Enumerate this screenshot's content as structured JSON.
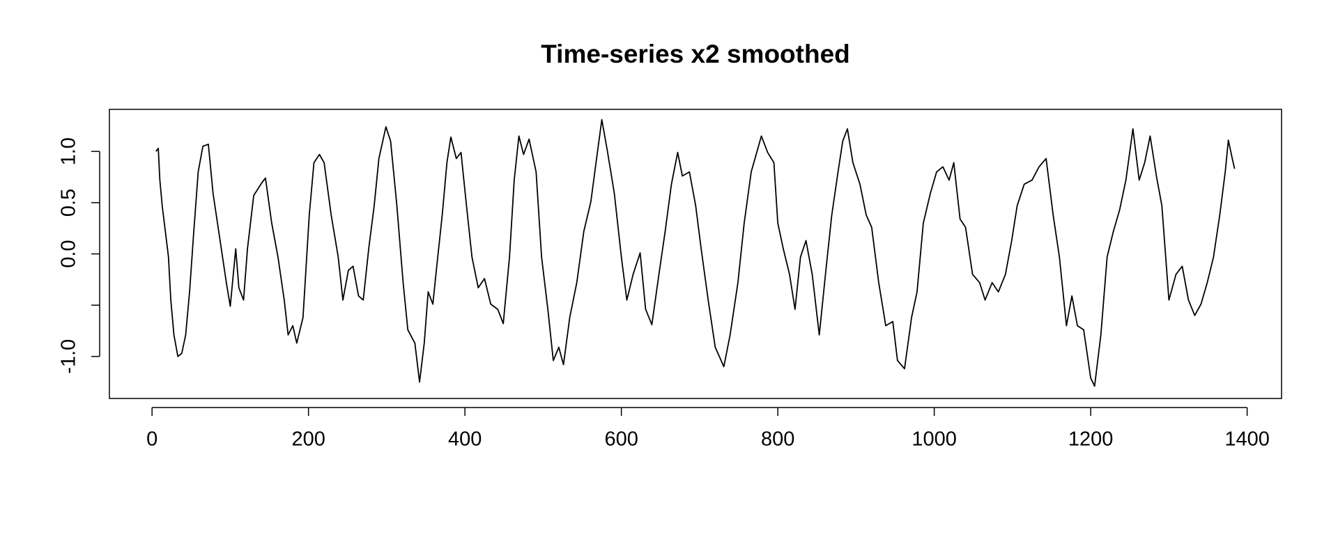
{
  "chart_data": {
    "type": "line",
    "title": "Time-series x2 smoothed",
    "x": [
      5,
      8,
      10,
      13,
      17,
      21,
      24,
      28,
      33,
      38,
      43,
      48,
      53,
      59,
      65,
      72,
      78,
      87,
      95,
      100,
      107,
      111,
      117,
      122,
      130,
      140,
      145,
      153,
      161,
      169,
      174,
      180,
      185,
      193,
      201,
      207,
      214,
      220,
      229,
      238,
      244,
      251,
      257,
      264,
      270,
      277,
      284,
      290,
      299,
      305,
      313,
      321,
      327,
      336,
      342,
      348,
      353,
      359,
      364,
      371,
      377,
      382,
      389,
      395,
      402,
      409,
      417,
      425,
      433,
      442,
      449,
      457,
      463,
      469,
      475,
      482,
      491,
      498,
      506,
      513,
      520,
      526,
      534,
      543,
      552,
      561,
      569,
      575,
      582,
      591,
      600,
      607,
      615,
      624,
      631,
      639,
      648,
      656,
      664,
      672,
      678,
      687,
      695,
      702,
      711,
      720,
      731,
      739,
      749,
      757,
      766,
      779,
      787,
      795,
      800,
      807,
      815,
      822,
      829,
      836,
      844,
      853,
      862,
      869,
      877,
      883,
      889,
      896,
      905,
      913,
      920,
      929,
      938,
      947,
      953,
      962,
      971,
      978,
      986,
      995,
      1003,
      1011,
      1019,
      1025,
      1033,
      1040,
      1049,
      1058,
      1065,
      1074,
      1082,
      1091,
      1099,
      1106,
      1115,
      1125,
      1134,
      1143,
      1152,
      1160,
      1169,
      1176,
      1183,
      1191,
      1200,
      1205,
      1213,
      1221,
      1229,
      1237,
      1245,
      1254,
      1262,
      1269,
      1276,
      1284,
      1291,
      1300,
      1309,
      1317,
      1325,
      1333,
      1341,
      1349,
      1357,
      1365,
      1372,
      1376,
      1381,
      1384
    ],
    "series": [
      {
        "color": "#000000",
        "values": [
          1.0,
          1.03,
          0.72,
          0.47,
          0.22,
          -0.03,
          -0.45,
          -0.79,
          -1.0,
          -0.97,
          -0.79,
          -0.37,
          0.18,
          0.8,
          1.05,
          1.07,
          0.59,
          0.13,
          -0.28,
          -0.51,
          0.05,
          -0.33,
          -0.45,
          0.05,
          0.57,
          0.69,
          0.74,
          0.3,
          -0.03,
          -0.45,
          -0.79,
          -0.7,
          -0.87,
          -0.62,
          0.38,
          0.89,
          0.97,
          0.89,
          0.38,
          -0.03,
          -0.45,
          -0.16,
          -0.12,
          -0.41,
          -0.45,
          0.05,
          0.47,
          0.93,
          1.24,
          1.1,
          0.47,
          -0.28,
          -0.74,
          -0.87,
          -1.25,
          -0.87,
          -0.37,
          -0.49,
          -0.12,
          0.38,
          0.89,
          1.14,
          0.93,
          0.99,
          0.47,
          -0.03,
          -0.33,
          -0.24,
          -0.49,
          -0.54,
          -0.68,
          -0.03,
          0.72,
          1.15,
          0.97,
          1.12,
          0.8,
          -0.03,
          -0.54,
          -1.04,
          -0.91,
          -1.08,
          -0.62,
          -0.28,
          0.22,
          0.51,
          0.97,
          1.31,
          1.01,
          0.59,
          -0.03,
          -0.45,
          -0.2,
          0.01,
          -0.54,
          -0.69,
          -0.2,
          0.22,
          0.68,
          0.99,
          0.76,
          0.8,
          0.47,
          0.05,
          -0.45,
          -0.91,
          -1.1,
          -0.79,
          -0.28,
          0.3,
          0.8,
          1.15,
          0.99,
          0.89,
          0.3,
          0.05,
          -0.2,
          -0.54,
          -0.03,
          0.13,
          -0.2,
          -0.79,
          -0.12,
          0.38,
          0.8,
          1.1,
          1.22,
          0.89,
          0.68,
          0.38,
          0.26,
          -0.28,
          -0.7,
          -0.66,
          -1.04,
          -1.12,
          -0.62,
          -0.37,
          0.3,
          0.59,
          0.8,
          0.85,
          0.72,
          0.89,
          0.34,
          0.26,
          -0.2,
          -0.28,
          -0.45,
          -0.28,
          -0.37,
          -0.2,
          0.13,
          0.47,
          0.68,
          0.72,
          0.85,
          0.93,
          0.38,
          -0.03,
          -0.7,
          -0.41,
          -0.7,
          -0.74,
          -1.21,
          -1.29,
          -0.79,
          -0.03,
          0.22,
          0.43,
          0.72,
          1.22,
          0.72,
          0.89,
          1.15,
          0.76,
          0.47,
          -0.45,
          -0.2,
          -0.12,
          -0.45,
          -0.6,
          -0.49,
          -0.28,
          -0.03,
          0.38,
          0.8,
          1.11,
          0.93,
          0.83
        ]
      }
    ],
    "xlim": [
      -54.5,
      1444
    ],
    "ylim": [
      -1.41,
      1.41
    ],
    "xticks": [
      0,
      200,
      400,
      600,
      800,
      1000,
      1200,
      1400
    ],
    "yticks": [
      {
        "value": -1,
        "label": "-1.0"
      },
      {
        "value": -0.5,
        "label": null
      },
      {
        "value": 0,
        "label": "0.0"
      },
      {
        "value": 0.5,
        "label": "0.5"
      },
      {
        "value": 1,
        "label": "1.0"
      }
    ]
  }
}
